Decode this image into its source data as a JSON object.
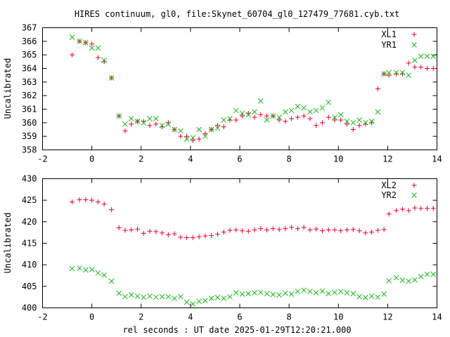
{
  "title": "HIRES continuum, gl0, file:Skynet_60704_gl0_127479_77681.cyb.txt",
  "xlabel": "rel seconds : UT date 2025-01-29T12:20:21.000",
  "colors": {
    "red": "#e8002a",
    "green": "#1db31d",
    "axis": "#000000"
  },
  "chart_data": [
    {
      "type": "scatter",
      "ylabel": "Uncalibrated",
      "xlim": [
        -2,
        14
      ],
      "ylim": [
        358,
        367
      ],
      "xticks": [
        -2,
        0,
        2,
        4,
        6,
        8,
        10,
        12,
        14
      ],
      "yticks": [
        358,
        359,
        360,
        361,
        362,
        363,
        364,
        365,
        366,
        367
      ],
      "legend_position": "top-right",
      "series": [
        {
          "name": "XL1",
          "marker": "plus",
          "color": "#e8002a",
          "x": [
            -0.8,
            -0.5,
            -0.25,
            0.0,
            0.25,
            0.5,
            0.8,
            1.1,
            1.35,
            1.6,
            1.85,
            2.1,
            2.35,
            2.6,
            2.85,
            3.1,
            3.35,
            3.6,
            3.85,
            4.1,
            4.35,
            4.6,
            4.85,
            5.1,
            5.35,
            5.6,
            5.85,
            6.1,
            6.35,
            6.6,
            6.85,
            7.1,
            7.35,
            7.6,
            7.85,
            8.1,
            8.35,
            8.6,
            8.85,
            9.1,
            9.35,
            9.6,
            9.85,
            10.1,
            10.35,
            10.6,
            10.85,
            11.1,
            11.35,
            11.6,
            11.85,
            12.05,
            12.35,
            12.6,
            12.85,
            13.1,
            13.35,
            13.6,
            13.85
          ],
          "y": [
            365.0,
            366.0,
            365.9,
            365.8,
            364.8,
            364.5,
            363.3,
            360.5,
            359.4,
            359.9,
            360.1,
            360.1,
            359.8,
            359.9,
            359.7,
            360.0,
            359.5,
            359.0,
            359.0,
            358.7,
            358.8,
            359.2,
            359.5,
            359.8,
            359.7,
            360.2,
            360.2,
            360.5,
            360.7,
            360.4,
            360.6,
            360.5,
            360.5,
            360.2,
            360.1,
            360.3,
            360.4,
            360.5,
            360.3,
            359.8,
            360.0,
            360.4,
            360.2,
            360.2,
            359.9,
            359.5,
            359.8,
            359.9,
            360.0,
            362.5,
            363.6,
            363.5,
            363.6,
            363.6,
            364.4,
            364.1,
            364.1,
            364.0,
            364.0
          ]
        },
        {
          "name": "YR1",
          "marker": "cross",
          "color": "#1db31d",
          "x": [
            -0.8,
            -0.5,
            -0.25,
            0.0,
            0.25,
            0.5,
            0.8,
            1.1,
            1.35,
            1.6,
            1.85,
            2.1,
            2.35,
            2.6,
            2.85,
            3.1,
            3.35,
            3.6,
            3.85,
            4.1,
            4.35,
            4.6,
            4.85,
            5.1,
            5.35,
            5.6,
            5.85,
            6.1,
            6.35,
            6.6,
            6.85,
            7.1,
            7.35,
            7.6,
            7.85,
            8.1,
            8.35,
            8.6,
            8.85,
            9.1,
            9.35,
            9.6,
            9.85,
            10.1,
            10.35,
            10.6,
            10.85,
            11.1,
            11.35,
            11.6,
            11.85,
            12.05,
            12.35,
            12.6,
            12.85,
            13.1,
            13.35,
            13.6,
            13.85
          ],
          "y": [
            366.3,
            366.0,
            365.9,
            365.5,
            365.5,
            364.6,
            363.3,
            360.5,
            359.9,
            360.3,
            360.1,
            360.0,
            360.3,
            360.3,
            359.8,
            359.9,
            359.5,
            359.4,
            358.8,
            358.9,
            359.5,
            359.0,
            359.5,
            359.6,
            360.2,
            360.3,
            360.9,
            360.7,
            360.6,
            360.8,
            361.6,
            360.2,
            360.5,
            360.4,
            360.8,
            360.9,
            361.2,
            361.1,
            360.8,
            360.9,
            361.1,
            361.5,
            360.4,
            360.6,
            360.1,
            360.0,
            360.2,
            360.0,
            360.1,
            360.8,
            363.6,
            363.7,
            363.7,
            363.7,
            363.5,
            364.6,
            364.9,
            364.9,
            364.9
          ]
        }
      ]
    },
    {
      "type": "scatter",
      "ylabel": "Uncalibrated",
      "xlim": [
        -2,
        14
      ],
      "ylim": [
        400,
        430
      ],
      "xticks": [
        -2,
        0,
        2,
        4,
        6,
        8,
        10,
        12,
        14
      ],
      "yticks": [
        400,
        405,
        410,
        415,
        420,
        425,
        430
      ],
      "legend_position": "top-right",
      "series": [
        {
          "name": "XL2",
          "marker": "plus",
          "color": "#e8002a",
          "x": [
            -0.8,
            -0.5,
            -0.25,
            0.0,
            0.25,
            0.5,
            0.8,
            1.1,
            1.35,
            1.6,
            1.85,
            2.1,
            2.35,
            2.6,
            2.85,
            3.1,
            3.35,
            3.6,
            3.85,
            4.1,
            4.35,
            4.6,
            4.85,
            5.1,
            5.35,
            5.6,
            5.85,
            6.1,
            6.35,
            6.6,
            6.85,
            7.1,
            7.35,
            7.6,
            7.85,
            8.1,
            8.35,
            8.6,
            8.85,
            9.1,
            9.35,
            9.6,
            9.85,
            10.1,
            10.35,
            10.6,
            10.85,
            11.1,
            11.35,
            11.6,
            11.85,
            12.05,
            12.35,
            12.6,
            12.85,
            13.1,
            13.35,
            13.6,
            13.85
          ],
          "y": [
            424.6,
            425.1,
            425.1,
            425.0,
            424.6,
            424.1,
            422.8,
            418.6,
            418.0,
            418.1,
            418.3,
            417.3,
            417.8,
            417.7,
            417.4,
            417.0,
            417.2,
            416.4,
            416.3,
            416.3,
            416.5,
            416.7,
            416.8,
            417.1,
            417.6,
            418.0,
            418.1,
            417.9,
            417.8,
            418.1,
            418.4,
            418.1,
            418.4,
            418.2,
            418.4,
            418.7,
            418.4,
            418.7,
            418.1,
            418.3,
            417.9,
            418.1,
            418.1,
            417.9,
            418.1,
            418.2,
            417.9,
            417.4,
            417.6,
            418.0,
            418.2,
            421.8,
            422.6,
            422.9,
            422.6,
            423.2,
            423.1,
            423.1,
            423.1
          ]
        },
        {
          "name": "YR2",
          "marker": "cross",
          "color": "#1db31d",
          "x": [
            -0.8,
            -0.5,
            -0.25,
            0.0,
            0.25,
            0.5,
            0.8,
            1.1,
            1.35,
            1.6,
            1.85,
            2.1,
            2.35,
            2.6,
            2.85,
            3.1,
            3.35,
            3.6,
            3.85,
            4.1,
            4.35,
            4.6,
            4.85,
            5.1,
            5.35,
            5.6,
            5.85,
            6.1,
            6.35,
            6.6,
            6.85,
            7.1,
            7.35,
            7.6,
            7.85,
            8.1,
            8.35,
            8.6,
            8.85,
            9.1,
            9.35,
            9.6,
            9.85,
            10.1,
            10.35,
            10.6,
            10.85,
            11.1,
            11.35,
            11.6,
            11.85,
            12.05,
            12.35,
            12.6,
            12.85,
            13.1,
            13.35,
            13.6,
            13.85
          ],
          "y": [
            409.1,
            409.2,
            408.8,
            408.9,
            408.1,
            407.6,
            406.2,
            403.4,
            402.6,
            403.0,
            402.7,
            402.5,
            402.7,
            402.5,
            402.6,
            402.6,
            402.2,
            402.6,
            401.3,
            400.9,
            401.5,
            401.7,
            402.2,
            402.4,
            402.2,
            402.6,
            403.5,
            403.2,
            403.3,
            403.5,
            403.6,
            403.3,
            403.1,
            403.0,
            403.4,
            403.2,
            403.8,
            404.1,
            403.8,
            403.5,
            403.9,
            403.3,
            403.6,
            403.8,
            403.5,
            403.3,
            402.6,
            402.4,
            402.7,
            402.5,
            403.2,
            406.3,
            407.0,
            406.4,
            406.2,
            406.5,
            407.3,
            407.8,
            407.8
          ]
        }
      ]
    }
  ]
}
